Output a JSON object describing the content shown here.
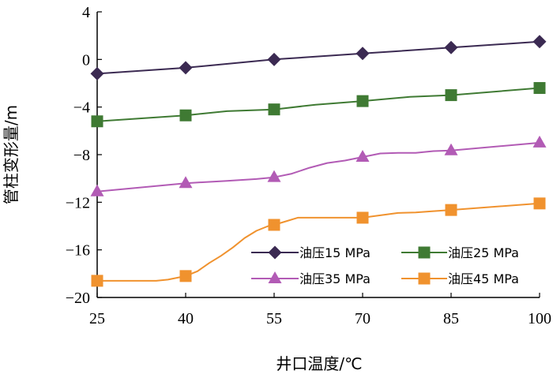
{
  "chart_data": {
    "type": "line",
    "xlabel": "井口温度/℃",
    "ylabel": "管柱变形量/m",
    "xlim": [
      25,
      100
    ],
    "ylim": [
      -20,
      4
    ],
    "x_ticks": [
      "25",
      "40",
      "55",
      "70",
      "85",
      "100"
    ],
    "y_ticks": [
      "4",
      "0",
      "−4",
      "−8",
      "−12",
      "−16",
      "−20"
    ],
    "grid": false,
    "legend_position": "bottom-right",
    "series": [
      {
        "name": "油压15 MPa",
        "color": "#3b2a52",
        "marker": "diamond",
        "line": [
          [
            25,
            -1.2
          ],
          [
            40,
            -0.7
          ],
          [
            55,
            0.0
          ],
          [
            70,
            0.5
          ],
          [
            85,
            1.0
          ],
          [
            100,
            1.5
          ]
        ],
        "markers": [
          [
            25,
            -1.2
          ],
          [
            40,
            -0.7
          ],
          [
            55,
            0.0
          ],
          [
            70,
            0.5
          ],
          [
            85,
            1.0
          ],
          [
            100,
            1.5
          ]
        ]
      },
      {
        "name": "油压25 MPa",
        "color": "#3f7a33",
        "marker": "square",
        "line": [
          [
            25,
            -5.2
          ],
          [
            40,
            -4.7
          ],
          [
            47,
            -4.35
          ],
          [
            55,
            -4.2
          ],
          [
            62,
            -3.8
          ],
          [
            70,
            -3.5
          ],
          [
            78,
            -3.15
          ],
          [
            85,
            -3.0
          ],
          [
            100,
            -2.4
          ]
        ],
        "markers": [
          [
            25,
            -5.2
          ],
          [
            40,
            -4.7
          ],
          [
            55,
            -4.2
          ],
          [
            70,
            -3.5
          ],
          [
            85,
            -3.0
          ],
          [
            100,
            -2.4
          ]
        ]
      },
      {
        "name": "油压35 MPa",
        "color": "#b25bb5",
        "marker": "triangle",
        "line": [
          [
            25,
            -11.1
          ],
          [
            40,
            -10.4
          ],
          [
            47,
            -10.2
          ],
          [
            52,
            -10.05
          ],
          [
            55,
            -9.9
          ],
          [
            58,
            -9.6
          ],
          [
            61,
            -9.1
          ],
          [
            64,
            -8.7
          ],
          [
            67,
            -8.5
          ],
          [
            70,
            -8.2
          ],
          [
            73,
            -7.9
          ],
          [
            76,
            -7.85
          ],
          [
            79,
            -7.85
          ],
          [
            82,
            -7.7
          ],
          [
            85,
            -7.65
          ],
          [
            100,
            -7.0
          ]
        ],
        "markers": [
          [
            25,
            -11.1
          ],
          [
            40,
            -10.4
          ],
          [
            55,
            -9.9
          ],
          [
            70,
            -8.2
          ],
          [
            85,
            -7.65
          ],
          [
            100,
            -7.0
          ]
        ]
      },
      {
        "name": "油压45 MPa",
        "color": "#f0922e",
        "marker": "square",
        "line": [
          [
            25,
            -18.6
          ],
          [
            30,
            -18.6
          ],
          [
            35,
            -18.6
          ],
          [
            37,
            -18.5
          ],
          [
            39,
            -18.3
          ],
          [
            40,
            -18.2
          ],
          [
            42,
            -17.8
          ],
          [
            44,
            -17.1
          ],
          [
            46,
            -16.5
          ],
          [
            48,
            -15.8
          ],
          [
            50,
            -15.0
          ],
          [
            52,
            -14.4
          ],
          [
            54,
            -14.0
          ],
          [
            55,
            -13.9
          ],
          [
            57,
            -13.6
          ],
          [
            59,
            -13.3
          ],
          [
            62,
            -13.3
          ],
          [
            66,
            -13.3
          ],
          [
            70,
            -13.3
          ],
          [
            73,
            -13.1
          ],
          [
            76,
            -12.9
          ],
          [
            79,
            -12.85
          ],
          [
            82,
            -12.75
          ],
          [
            85,
            -12.65
          ],
          [
            100,
            -12.1
          ]
        ],
        "markers": [
          [
            25,
            -18.6
          ],
          [
            40,
            -18.2
          ],
          [
            55,
            -13.9
          ],
          [
            70,
            -13.3
          ],
          [
            85,
            -12.65
          ],
          [
            100,
            -12.1
          ]
        ]
      }
    ]
  }
}
